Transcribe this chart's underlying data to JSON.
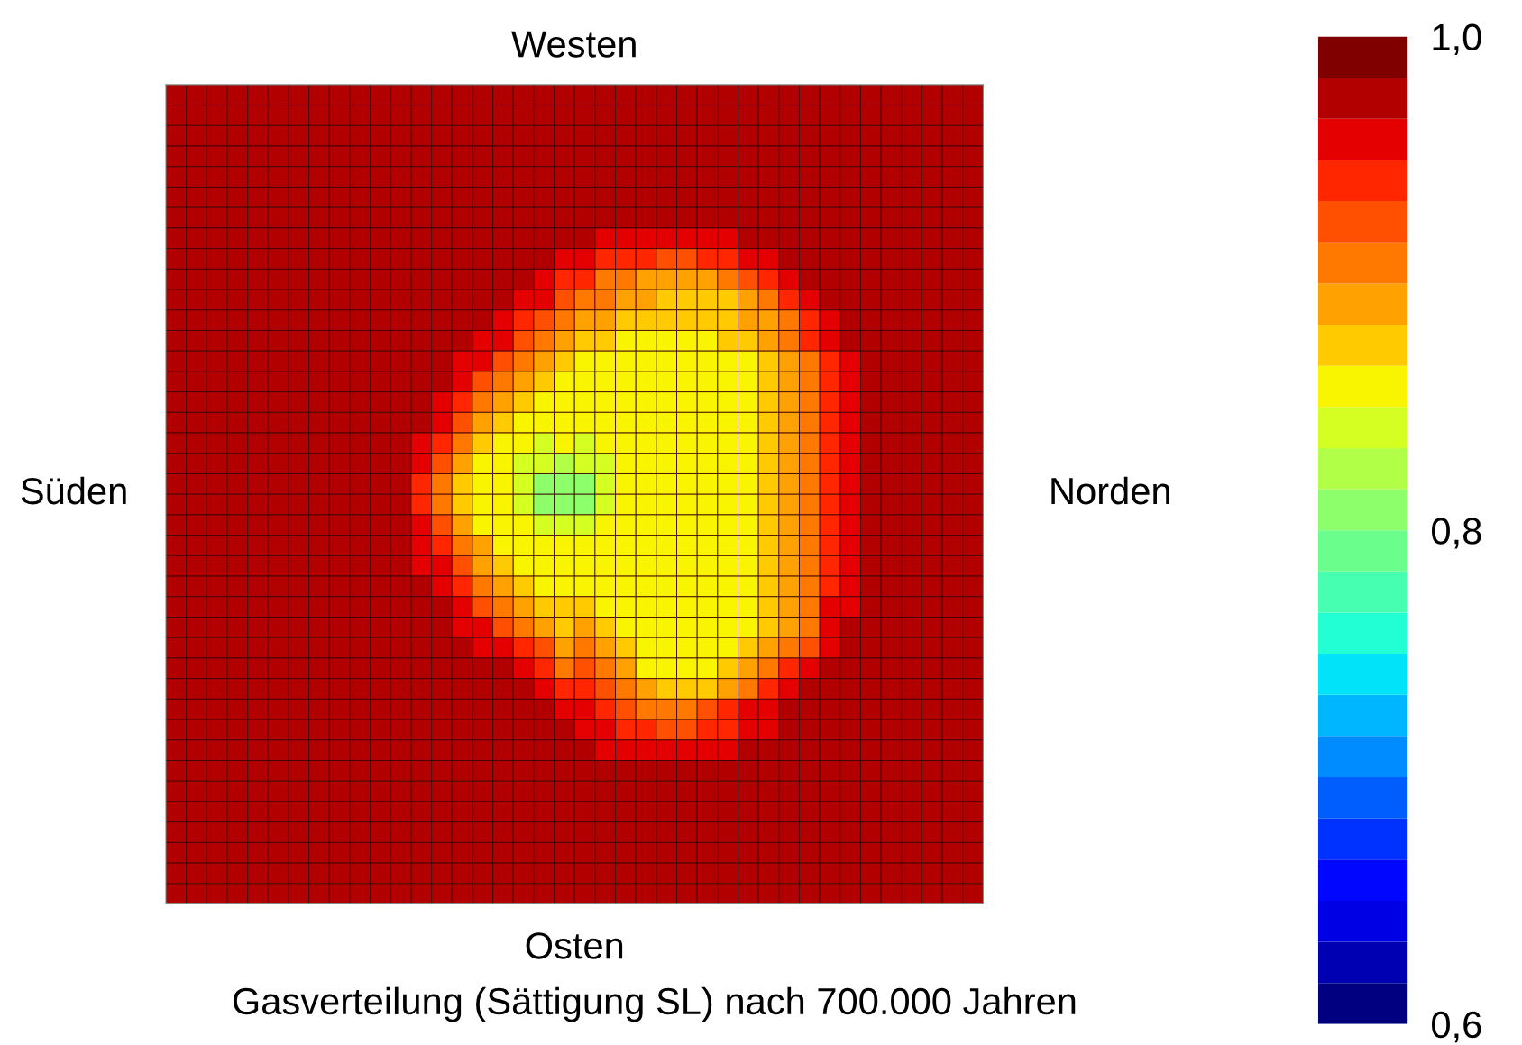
{
  "chart_data": {
    "type": "heatmap",
    "title": "Gasverteilung (Sättigung SL) nach 700.000 Jahren",
    "xlabel": "Osten",
    "x2label": "Westen",
    "ylabel": "Süden",
    "y2label": "Norden",
    "tick_labels": false,
    "clim": [
      0.6,
      1.0
    ],
    "cticks": [
      {
        "value": 0.6,
        "label": "0,6"
      },
      {
        "value": 0.8,
        "label": "0,8"
      },
      {
        "value": 1.0,
        "label": "1,0"
      }
    ],
    "categories": [
      null,
      null,
      null,
      null,
      null,
      null,
      null,
      null,
      null,
      null,
      null,
      null,
      null,
      null,
      null,
      null,
      null,
      null,
      null,
      null,
      null,
      null,
      null,
      null,
      null,
      null,
      null,
      null,
      null,
      null,
      null,
      null,
      null,
      null,
      null,
      null,
      null,
      null,
      null,
      null
    ],
    "y_categories": [
      null,
      null,
      null,
      null,
      null,
      null,
      null,
      null,
      null,
      null,
      null,
      null,
      null,
      null,
      null,
      null,
      null,
      null,
      null,
      null,
      null,
      null,
      null,
      null,
      null,
      null,
      null,
      null,
      null,
      null,
      null,
      null,
      null,
      null,
      null,
      null,
      null,
      null,
      null,
      null
    ],
    "cells": [
      [
        0.975,
        0.975,
        0.975,
        0.975,
        0.975,
        0.975,
        0.975,
        0.975,
        0.975,
        0.975,
        0.975,
        0.975,
        0.975,
        0.975,
        0.975,
        0.975,
        0.975,
        0.975,
        0.975,
        0.975,
        0.975,
        0.975,
        0.975,
        0.975,
        0.975,
        0.975,
        0.975,
        0.975,
        0.975,
        0.975,
        0.975,
        0.975,
        0.975,
        0.975,
        0.975,
        0.975,
        0.975,
        0.975,
        0.975,
        0.975
      ],
      [
        0.975,
        0.975,
        0.975,
        0.975,
        0.975,
        0.975,
        0.975,
        0.975,
        0.975,
        0.975,
        0.975,
        0.975,
        0.975,
        0.975,
        0.975,
        0.975,
        0.975,
        0.975,
        0.975,
        0.975,
        0.975,
        0.975,
        0.975,
        0.975,
        0.975,
        0.975,
        0.975,
        0.975,
        0.975,
        0.975,
        0.975,
        0.975,
        0.975,
        0.975,
        0.975,
        0.975,
        0.975,
        0.975,
        0.975,
        0.975
      ],
      [
        0.975,
        0.975,
        0.975,
        0.975,
        0.975,
        0.975,
        0.975,
        0.975,
        0.975,
        0.975,
        0.975,
        0.975,
        0.975,
        0.975,
        0.975,
        0.975,
        0.975,
        0.975,
        0.975,
        0.975,
        0.975,
        0.975,
        0.975,
        0.975,
        0.975,
        0.975,
        0.975,
        0.975,
        0.975,
        0.975,
        0.975,
        0.975,
        0.975,
        0.975,
        0.975,
        0.975,
        0.975,
        0.975,
        0.975,
        0.975
      ],
      [
        0.975,
        0.975,
        0.975,
        0.975,
        0.975,
        0.975,
        0.975,
        0.975,
        0.975,
        0.975,
        0.975,
        0.975,
        0.975,
        0.975,
        0.975,
        0.975,
        0.975,
        0.975,
        0.975,
        0.975,
        0.975,
        0.975,
        0.975,
        0.975,
        0.975,
        0.975,
        0.975,
        0.975,
        0.975,
        0.975,
        0.975,
        0.975,
        0.975,
        0.975,
        0.975,
        0.975,
        0.975,
        0.975,
        0.975,
        0.975
      ],
      [
        0.975,
        0.975,
        0.975,
        0.975,
        0.975,
        0.975,
        0.975,
        0.975,
        0.975,
        0.975,
        0.975,
        0.975,
        0.975,
        0.975,
        0.975,
        0.975,
        0.975,
        0.975,
        0.975,
        0.975,
        0.975,
        0.975,
        0.975,
        0.975,
        0.975,
        0.975,
        0.975,
        0.975,
        0.975,
        0.975,
        0.975,
        0.975,
        0.975,
        0.975,
        0.975,
        0.975,
        0.975,
        0.975,
        0.975,
        0.975
      ],
      [
        0.975,
        0.975,
        0.975,
        0.975,
        0.975,
        0.975,
        0.975,
        0.975,
        0.975,
        0.975,
        0.975,
        0.975,
        0.975,
        0.975,
        0.975,
        0.975,
        0.975,
        0.975,
        0.975,
        0.975,
        0.975,
        0.975,
        0.975,
        0.975,
        0.975,
        0.975,
        0.975,
        0.975,
        0.975,
        0.975,
        0.975,
        0.975,
        0.975,
        0.975,
        0.975,
        0.975,
        0.975,
        0.975,
        0.975,
        0.975
      ],
      [
        0.975,
        0.975,
        0.975,
        0.975,
        0.975,
        0.975,
        0.975,
        0.975,
        0.975,
        0.975,
        0.975,
        0.975,
        0.975,
        0.975,
        0.975,
        0.975,
        0.975,
        0.975,
        0.975,
        0.975,
        0.975,
        0.975,
        0.975,
        0.975,
        0.975,
        0.975,
        0.975,
        0.975,
        0.975,
        0.975,
        0.975,
        0.975,
        0.975,
        0.975,
        0.975,
        0.975,
        0.975,
        0.975,
        0.975,
        0.975
      ],
      [
        0.975,
        0.975,
        0.975,
        0.975,
        0.975,
        0.975,
        0.975,
        0.975,
        0.975,
        0.975,
        0.975,
        0.975,
        0.975,
        0.975,
        0.975,
        0.975,
        0.975,
        0.975,
        0.975,
        0.975,
        0.975,
        0.958,
        0.958,
        0.958,
        0.958,
        0.958,
        0.958,
        0.958,
        0.975,
        0.975,
        0.975,
        0.975,
        0.975,
        0.975,
        0.975,
        0.975,
        0.975,
        0.975,
        0.975,
        0.975
      ],
      [
        0.975,
        0.975,
        0.975,
        0.975,
        0.975,
        0.975,
        0.975,
        0.975,
        0.975,
        0.975,
        0.975,
        0.975,
        0.975,
        0.975,
        0.975,
        0.975,
        0.975,
        0.975,
        0.975,
        0.958,
        0.958,
        0.942,
        0.942,
        0.942,
        0.925,
        0.925,
        0.942,
        0.942,
        0.958,
        0.958,
        0.975,
        0.975,
        0.975,
        0.975,
        0.975,
        0.975,
        0.975,
        0.975,
        0.975,
        0.975
      ],
      [
        0.975,
        0.975,
        0.975,
        0.975,
        0.975,
        0.975,
        0.975,
        0.975,
        0.975,
        0.975,
        0.975,
        0.975,
        0.975,
        0.975,
        0.975,
        0.975,
        0.975,
        0.975,
        0.958,
        0.942,
        0.942,
        0.908,
        0.908,
        0.892,
        0.892,
        0.892,
        0.892,
        0.908,
        0.925,
        0.942,
        0.958,
        0.975,
        0.975,
        0.975,
        0.975,
        0.975,
        0.975,
        0.975,
        0.975,
        0.975
      ],
      [
        0.975,
        0.975,
        0.975,
        0.975,
        0.975,
        0.975,
        0.975,
        0.975,
        0.975,
        0.975,
        0.975,
        0.975,
        0.975,
        0.975,
        0.975,
        0.975,
        0.975,
        0.958,
        0.958,
        0.925,
        0.908,
        0.908,
        0.892,
        0.892,
        0.875,
        0.875,
        0.875,
        0.875,
        0.892,
        0.908,
        0.942,
        0.958,
        0.975,
        0.975,
        0.975,
        0.975,
        0.975,
        0.975,
        0.975,
        0.975
      ],
      [
        0.975,
        0.975,
        0.975,
        0.975,
        0.975,
        0.975,
        0.975,
        0.975,
        0.975,
        0.975,
        0.975,
        0.975,
        0.975,
        0.975,
        0.975,
        0.975,
        0.958,
        0.942,
        0.925,
        0.908,
        0.892,
        0.892,
        0.875,
        0.875,
        0.875,
        0.875,
        0.875,
        0.875,
        0.892,
        0.892,
        0.908,
        0.942,
        0.958,
        0.975,
        0.975,
        0.975,
        0.975,
        0.975,
        0.975,
        0.975
      ],
      [
        0.975,
        0.975,
        0.975,
        0.975,
        0.975,
        0.975,
        0.975,
        0.975,
        0.975,
        0.975,
        0.975,
        0.975,
        0.975,
        0.975,
        0.975,
        0.958,
        0.958,
        0.925,
        0.908,
        0.892,
        0.875,
        0.875,
        0.858,
        0.858,
        0.858,
        0.858,
        0.858,
        0.875,
        0.875,
        0.892,
        0.908,
        0.942,
        0.958,
        0.975,
        0.975,
        0.975,
        0.975,
        0.975,
        0.975,
        0.975
      ],
      [
        0.975,
        0.975,
        0.975,
        0.975,
        0.975,
        0.975,
        0.975,
        0.975,
        0.975,
        0.975,
        0.975,
        0.975,
        0.975,
        0.975,
        0.958,
        0.958,
        0.925,
        0.908,
        0.892,
        0.875,
        0.858,
        0.858,
        0.858,
        0.858,
        0.858,
        0.858,
        0.858,
        0.858,
        0.858,
        0.875,
        0.892,
        0.908,
        0.942,
        0.958,
        0.975,
        0.975,
        0.975,
        0.975,
        0.975,
        0.975
      ],
      [
        0.975,
        0.975,
        0.975,
        0.975,
        0.975,
        0.975,
        0.975,
        0.975,
        0.975,
        0.975,
        0.975,
        0.975,
        0.975,
        0.975,
        0.958,
        0.925,
        0.908,
        0.892,
        0.875,
        0.858,
        0.858,
        0.858,
        0.858,
        0.858,
        0.858,
        0.858,
        0.858,
        0.858,
        0.858,
        0.875,
        0.892,
        0.908,
        0.942,
        0.958,
        0.975,
        0.975,
        0.975,
        0.975,
        0.975,
        0.975
      ],
      [
        0.975,
        0.975,
        0.975,
        0.975,
        0.975,
        0.975,
        0.975,
        0.975,
        0.975,
        0.975,
        0.975,
        0.975,
        0.975,
        0.958,
        0.942,
        0.908,
        0.892,
        0.875,
        0.858,
        0.858,
        0.858,
        0.858,
        0.858,
        0.858,
        0.858,
        0.858,
        0.858,
        0.858,
        0.858,
        0.875,
        0.892,
        0.908,
        0.942,
        0.958,
        0.975,
        0.975,
        0.975,
        0.975,
        0.975,
        0.975
      ],
      [
        0.975,
        0.975,
        0.975,
        0.975,
        0.975,
        0.975,
        0.975,
        0.975,
        0.975,
        0.975,
        0.975,
        0.975,
        0.975,
        0.958,
        0.925,
        0.892,
        0.875,
        0.858,
        0.858,
        0.858,
        0.858,
        0.858,
        0.858,
        0.858,
        0.858,
        0.858,
        0.858,
        0.858,
        0.858,
        0.875,
        0.892,
        0.908,
        0.942,
        0.958,
        0.975,
        0.975,
        0.975,
        0.975,
        0.975,
        0.975
      ],
      [
        0.975,
        0.975,
        0.975,
        0.975,
        0.975,
        0.975,
        0.975,
        0.975,
        0.975,
        0.975,
        0.975,
        0.975,
        0.958,
        0.942,
        0.908,
        0.875,
        0.858,
        0.858,
        0.842,
        0.858,
        0.842,
        0.858,
        0.858,
        0.858,
        0.858,
        0.858,
        0.858,
        0.858,
        0.858,
        0.875,
        0.892,
        0.908,
        0.942,
        0.958,
        0.975,
        0.975,
        0.975,
        0.975,
        0.975,
        0.975
      ],
      [
        0.975,
        0.975,
        0.975,
        0.975,
        0.975,
        0.975,
        0.975,
        0.975,
        0.975,
        0.975,
        0.975,
        0.975,
        0.958,
        0.925,
        0.892,
        0.858,
        0.858,
        0.842,
        0.842,
        0.825,
        0.842,
        0.842,
        0.858,
        0.858,
        0.858,
        0.858,
        0.858,
        0.858,
        0.858,
        0.875,
        0.892,
        0.908,
        0.942,
        0.958,
        0.975,
        0.975,
        0.975,
        0.975,
        0.975,
        0.975
      ],
      [
        0.975,
        0.975,
        0.975,
        0.975,
        0.975,
        0.975,
        0.975,
        0.975,
        0.975,
        0.975,
        0.975,
        0.975,
        0.942,
        0.908,
        0.875,
        0.858,
        0.858,
        0.842,
        0.808,
        0.808,
        0.808,
        0.842,
        0.858,
        0.858,
        0.858,
        0.858,
        0.858,
        0.858,
        0.858,
        0.875,
        0.892,
        0.908,
        0.942,
        0.958,
        0.975,
        0.975,
        0.975,
        0.975,
        0.975,
        0.975
      ],
      [
        0.975,
        0.975,
        0.975,
        0.975,
        0.975,
        0.975,
        0.975,
        0.975,
        0.975,
        0.975,
        0.975,
        0.975,
        0.942,
        0.908,
        0.875,
        0.858,
        0.858,
        0.842,
        0.808,
        0.808,
        0.808,
        0.842,
        0.858,
        0.858,
        0.858,
        0.858,
        0.858,
        0.858,
        0.858,
        0.875,
        0.892,
        0.908,
        0.942,
        0.958,
        0.975,
        0.975,
        0.975,
        0.975,
        0.975,
        0.975
      ],
      [
        0.975,
        0.975,
        0.975,
        0.975,
        0.975,
        0.975,
        0.975,
        0.975,
        0.975,
        0.975,
        0.975,
        0.975,
        0.958,
        0.925,
        0.892,
        0.858,
        0.858,
        0.858,
        0.842,
        0.842,
        0.842,
        0.858,
        0.858,
        0.858,
        0.858,
        0.858,
        0.858,
        0.858,
        0.858,
        0.875,
        0.892,
        0.908,
        0.942,
        0.958,
        0.975,
        0.975,
        0.975,
        0.975,
        0.975,
        0.975
      ],
      [
        0.975,
        0.975,
        0.975,
        0.975,
        0.975,
        0.975,
        0.975,
        0.975,
        0.975,
        0.975,
        0.975,
        0.975,
        0.958,
        0.942,
        0.908,
        0.892,
        0.858,
        0.858,
        0.858,
        0.858,
        0.858,
        0.858,
        0.858,
        0.858,
        0.858,
        0.858,
        0.858,
        0.858,
        0.858,
        0.875,
        0.892,
        0.908,
        0.942,
        0.958,
        0.975,
        0.975,
        0.975,
        0.975,
        0.975,
        0.975
      ],
      [
        0.975,
        0.975,
        0.975,
        0.975,
        0.975,
        0.975,
        0.975,
        0.975,
        0.975,
        0.975,
        0.975,
        0.975,
        0.958,
        0.958,
        0.925,
        0.892,
        0.875,
        0.858,
        0.858,
        0.858,
        0.858,
        0.858,
        0.858,
        0.858,
        0.858,
        0.858,
        0.858,
        0.858,
        0.858,
        0.875,
        0.892,
        0.908,
        0.942,
        0.958,
        0.975,
        0.975,
        0.975,
        0.975,
        0.975,
        0.975
      ],
      [
        0.975,
        0.975,
        0.975,
        0.975,
        0.975,
        0.975,
        0.975,
        0.975,
        0.975,
        0.975,
        0.975,
        0.975,
        0.975,
        0.958,
        0.942,
        0.908,
        0.892,
        0.875,
        0.858,
        0.858,
        0.858,
        0.858,
        0.858,
        0.858,
        0.858,
        0.858,
        0.858,
        0.858,
        0.858,
        0.875,
        0.892,
        0.908,
        0.942,
        0.958,
        0.975,
        0.975,
        0.975,
        0.975,
        0.975,
        0.975
      ],
      [
        0.975,
        0.975,
        0.975,
        0.975,
        0.975,
        0.975,
        0.975,
        0.975,
        0.975,
        0.975,
        0.975,
        0.975,
        0.975,
        0.975,
        0.958,
        0.925,
        0.908,
        0.892,
        0.875,
        0.875,
        0.875,
        0.858,
        0.858,
        0.858,
        0.858,
        0.858,
        0.858,
        0.858,
        0.858,
        0.875,
        0.892,
        0.908,
        0.958,
        0.958,
        0.975,
        0.975,
        0.975,
        0.975,
        0.975,
        0.975
      ],
      [
        0.975,
        0.975,
        0.975,
        0.975,
        0.975,
        0.975,
        0.975,
        0.975,
        0.975,
        0.975,
        0.975,
        0.975,
        0.975,
        0.975,
        0.958,
        0.958,
        0.925,
        0.908,
        0.892,
        0.875,
        0.892,
        0.875,
        0.858,
        0.858,
        0.858,
        0.858,
        0.858,
        0.858,
        0.858,
        0.875,
        0.892,
        0.908,
        0.958,
        0.975,
        0.975,
        0.975,
        0.975,
        0.975,
        0.975,
        0.975
      ],
      [
        0.975,
        0.975,
        0.975,
        0.975,
        0.975,
        0.975,
        0.975,
        0.975,
        0.975,
        0.975,
        0.975,
        0.975,
        0.975,
        0.975,
        0.975,
        0.958,
        0.958,
        0.942,
        0.925,
        0.892,
        0.908,
        0.892,
        0.875,
        0.858,
        0.858,
        0.858,
        0.858,
        0.858,
        0.875,
        0.892,
        0.908,
        0.925,
        0.958,
        0.975,
        0.975,
        0.975,
        0.975,
        0.975,
        0.975,
        0.975
      ],
      [
        0.975,
        0.975,
        0.975,
        0.975,
        0.975,
        0.975,
        0.975,
        0.975,
        0.975,
        0.975,
        0.975,
        0.975,
        0.975,
        0.975,
        0.975,
        0.975,
        0.975,
        0.958,
        0.942,
        0.908,
        0.925,
        0.908,
        0.892,
        0.858,
        0.858,
        0.858,
        0.858,
        0.875,
        0.892,
        0.908,
        0.942,
        0.958,
        0.975,
        0.975,
        0.975,
        0.975,
        0.975,
        0.975,
        0.975,
        0.975
      ],
      [
        0.975,
        0.975,
        0.975,
        0.975,
        0.975,
        0.975,
        0.975,
        0.975,
        0.975,
        0.975,
        0.975,
        0.975,
        0.975,
        0.975,
        0.975,
        0.975,
        0.975,
        0.975,
        0.958,
        0.942,
        0.942,
        0.925,
        0.908,
        0.892,
        0.875,
        0.875,
        0.875,
        0.892,
        0.908,
        0.942,
        0.958,
        0.975,
        0.975,
        0.975,
        0.975,
        0.975,
        0.975,
        0.975,
        0.975,
        0.975
      ],
      [
        0.975,
        0.975,
        0.975,
        0.975,
        0.975,
        0.975,
        0.975,
        0.975,
        0.975,
        0.975,
        0.975,
        0.975,
        0.975,
        0.975,
        0.975,
        0.975,
        0.975,
        0.975,
        0.975,
        0.958,
        0.958,
        0.942,
        0.925,
        0.908,
        0.908,
        0.908,
        0.925,
        0.942,
        0.958,
        0.958,
        0.975,
        0.975,
        0.975,
        0.975,
        0.975,
        0.975,
        0.975,
        0.975,
        0.975,
        0.975
      ],
      [
        0.975,
        0.975,
        0.975,
        0.975,
        0.975,
        0.975,
        0.975,
        0.975,
        0.975,
        0.975,
        0.975,
        0.975,
        0.975,
        0.975,
        0.975,
        0.975,
        0.975,
        0.975,
        0.975,
        0.975,
        0.958,
        0.958,
        0.942,
        0.942,
        0.925,
        0.925,
        0.942,
        0.942,
        0.958,
        0.958,
        0.975,
        0.975,
        0.975,
        0.975,
        0.975,
        0.975,
        0.975,
        0.975,
        0.975,
        0.975
      ],
      [
        0.975,
        0.975,
        0.975,
        0.975,
        0.975,
        0.975,
        0.975,
        0.975,
        0.975,
        0.975,
        0.975,
        0.975,
        0.975,
        0.975,
        0.975,
        0.975,
        0.975,
        0.975,
        0.975,
        0.975,
        0.975,
        0.958,
        0.958,
        0.958,
        0.958,
        0.958,
        0.958,
        0.958,
        0.975,
        0.975,
        0.975,
        0.975,
        0.975,
        0.975,
        0.975,
        0.975,
        0.975,
        0.975,
        0.975,
        0.975
      ],
      [
        0.975,
        0.975,
        0.975,
        0.975,
        0.975,
        0.975,
        0.975,
        0.975,
        0.975,
        0.975,
        0.975,
        0.975,
        0.975,
        0.975,
        0.975,
        0.975,
        0.975,
        0.975,
        0.975,
        0.975,
        0.975,
        0.975,
        0.975,
        0.975,
        0.975,
        0.975,
        0.975,
        0.975,
        0.975,
        0.975,
        0.975,
        0.975,
        0.975,
        0.975,
        0.975,
        0.975,
        0.975,
        0.975,
        0.975,
        0.975
      ],
      [
        0.975,
        0.975,
        0.975,
        0.975,
        0.975,
        0.975,
        0.975,
        0.975,
        0.975,
        0.975,
        0.975,
        0.975,
        0.975,
        0.975,
        0.975,
        0.975,
        0.975,
        0.975,
        0.975,
        0.975,
        0.975,
        0.975,
        0.975,
        0.975,
        0.975,
        0.975,
        0.975,
        0.975,
        0.975,
        0.975,
        0.975,
        0.975,
        0.975,
        0.975,
        0.975,
        0.975,
        0.975,
        0.975,
        0.975,
        0.975
      ],
      [
        0.975,
        0.975,
        0.975,
        0.975,
        0.975,
        0.975,
        0.975,
        0.975,
        0.975,
        0.975,
        0.975,
        0.975,
        0.975,
        0.975,
        0.975,
        0.975,
        0.975,
        0.975,
        0.975,
        0.975,
        0.975,
        0.975,
        0.975,
        0.975,
        0.975,
        0.975,
        0.975,
        0.975,
        0.975,
        0.975,
        0.975,
        0.975,
        0.975,
        0.975,
        0.975,
        0.975,
        0.975,
        0.975,
        0.975,
        0.975
      ],
      [
        0.975,
        0.975,
        0.975,
        0.975,
        0.975,
        0.975,
        0.975,
        0.975,
        0.975,
        0.975,
        0.975,
        0.975,
        0.975,
        0.975,
        0.975,
        0.975,
        0.975,
        0.975,
        0.975,
        0.975,
        0.975,
        0.975,
        0.975,
        0.975,
        0.975,
        0.975,
        0.975,
        0.975,
        0.975,
        0.975,
        0.975,
        0.975,
        0.975,
        0.975,
        0.975,
        0.975,
        0.975,
        0.975,
        0.975,
        0.975
      ],
      [
        0.975,
        0.975,
        0.975,
        0.975,
        0.975,
        0.975,
        0.975,
        0.975,
        0.975,
        0.975,
        0.975,
        0.975,
        0.975,
        0.975,
        0.975,
        0.975,
        0.975,
        0.975,
        0.975,
        0.975,
        0.975,
        0.975,
        0.975,
        0.975,
        0.975,
        0.975,
        0.975,
        0.975,
        0.975,
        0.975,
        0.975,
        0.975,
        0.975,
        0.975,
        0.975,
        0.975,
        0.975,
        0.975,
        0.975,
        0.975
      ],
      [
        0.975,
        0.975,
        0.975,
        0.975,
        0.975,
        0.975,
        0.975,
        0.975,
        0.975,
        0.975,
        0.975,
        0.975,
        0.975,
        0.975,
        0.975,
        0.975,
        0.975,
        0.975,
        0.975,
        0.975,
        0.975,
        0.975,
        0.975,
        0.975,
        0.975,
        0.975,
        0.975,
        0.975,
        0.975,
        0.975,
        0.975,
        0.975,
        0.975,
        0.975,
        0.975,
        0.975,
        0.975,
        0.975,
        0.975,
        0.975
      ],
      [
        0.975,
        0.975,
        0.975,
        0.975,
        0.975,
        0.975,
        0.975,
        0.975,
        0.975,
        0.975,
        0.975,
        0.975,
        0.975,
        0.975,
        0.975,
        0.975,
        0.975,
        0.975,
        0.975,
        0.975,
        0.975,
        0.975,
        0.975,
        0.975,
        0.975,
        0.975,
        0.975,
        0.975,
        0.975,
        0.975,
        0.975,
        0.975,
        0.975,
        0.975,
        0.975,
        0.975,
        0.975,
        0.975,
        0.975,
        0.975
      ]
    ]
  }
}
